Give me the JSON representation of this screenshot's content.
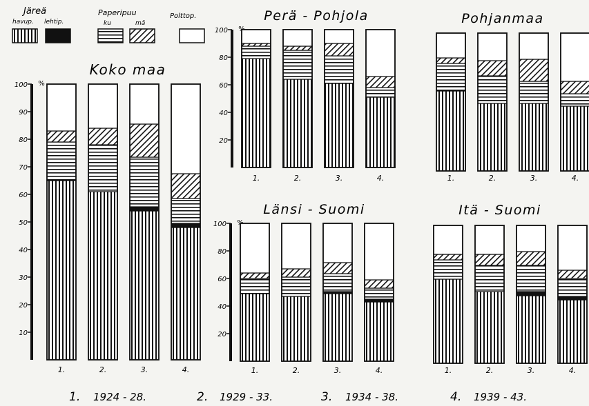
{
  "legend": {
    "title_saw": "Järeä",
    "saw_conifer": "havup.",
    "saw_broadleaf": "lehtip.",
    "title_pulp": "Paperipuu",
    "pulp_spruce": "ku",
    "pulp_pine": "mä",
    "fuel": "Polttop."
  },
  "period_key": [
    {
      "num": "1.",
      "years": "1924 - 28."
    },
    {
      "num": "2.",
      "years": "1929 - 33."
    },
    {
      "num": "3.",
      "years": "1934 - 38."
    },
    {
      "num": "4.",
      "years": "1939 - 43."
    }
  ],
  "chart_data": [
    {
      "type": "bar",
      "stacked": true,
      "title": "Koko maa",
      "ylabel": "%",
      "ylim": [
        0,
        100
      ],
      "yticks": [
        "10",
        "20",
        "30",
        "40",
        "50",
        "60",
        "70",
        "80",
        "90",
        "100"
      ],
      "categories": [
        "1.",
        "2.",
        "3.",
        "4."
      ],
      "series": [
        {
          "pattern": "vertical",
          "values": [
            65,
            61,
            54,
            48
          ]
        },
        {
          "pattern": "solid",
          "values": [
            0,
            0,
            1.5,
            1.5
          ]
        },
        {
          "pattern": "horizontal",
          "values": [
            14,
            17,
            18,
            9
          ]
        },
        {
          "pattern": "diagonal",
          "values": [
            4,
            6,
            12,
            9
          ]
        },
        {
          "pattern": "empty",
          "values": [
            17,
            16,
            14.5,
            32.5
          ]
        }
      ]
    },
    {
      "type": "bar",
      "stacked": true,
      "title": "Perä - Pohjola",
      "ylabel": "%",
      "ylim": [
        0,
        100
      ],
      "yticks": [
        "20",
        "40",
        "60",
        "80",
        "100"
      ],
      "categories": [
        "1.",
        "2.",
        "3.",
        "4."
      ],
      "series": [
        {
          "pattern": "vertical",
          "values": [
            79,
            64,
            61,
            51
          ]
        },
        {
          "pattern": "solid",
          "values": [
            0,
            0,
            0,
            0
          ]
        },
        {
          "pattern": "horizontal",
          "values": [
            9,
            21,
            20,
            7
          ]
        },
        {
          "pattern": "diagonal",
          "values": [
            2,
            3,
            9,
            8
          ]
        },
        {
          "pattern": "empty",
          "values": [
            10,
            12,
            10,
            34
          ]
        }
      ]
    },
    {
      "type": "bar",
      "stacked": true,
      "title": "Pohjanmaa",
      "ylabel": "",
      "ylim": [
        0,
        100
      ],
      "yticks": [],
      "categories": [
        "1.",
        "2.",
        "3.",
        "4."
      ],
      "series": [
        {
          "pattern": "vertical",
          "values": [
            58,
            49,
            49,
            47
          ]
        },
        {
          "pattern": "solid",
          "values": [
            0,
            0,
            0,
            0
          ]
        },
        {
          "pattern": "horizontal",
          "values": [
            20,
            20,
            16,
            9
          ]
        },
        {
          "pattern": "diagonal",
          "values": [
            4,
            11,
            16,
            9
          ]
        },
        {
          "pattern": "empty",
          "values": [
            18,
            20,
            19,
            35
          ]
        }
      ]
    },
    {
      "type": "bar",
      "stacked": true,
      "title": "Länsi - Suomi",
      "ylabel": "%",
      "ylim": [
        0,
        100
      ],
      "yticks": [
        "20",
        "40",
        "60",
        "80",
        "100"
      ],
      "categories": [
        "1.",
        "2.",
        "3.",
        "4."
      ],
      "series": [
        {
          "pattern": "vertical",
          "values": [
            49,
            47,
            49,
            43
          ]
        },
        {
          "pattern": "solid",
          "values": [
            0,
            0,
            1.5,
            2
          ]
        },
        {
          "pattern": "horizontal",
          "values": [
            11,
            14,
            13,
            8
          ]
        },
        {
          "pattern": "diagonal",
          "values": [
            4,
            6,
            8,
            6
          ]
        },
        {
          "pattern": "empty",
          "values": [
            36,
            33,
            28.5,
            41
          ]
        }
      ]
    },
    {
      "type": "bar",
      "stacked": true,
      "title": "Itä - Suomi",
      "ylabel": "",
      "ylim": [
        0,
        100
      ],
      "yticks": [],
      "categories": [
        "1.",
        "2.",
        "3.",
        "4."
      ],
      "series": [
        {
          "pattern": "vertical",
          "values": [
            61,
            52,
            49,
            46
          ]
        },
        {
          "pattern": "solid",
          "values": [
            0,
            0,
            3,
            2.5
          ]
        },
        {
          "pattern": "horizontal",
          "values": [
            14,
            19,
            19,
            13
          ]
        },
        {
          "pattern": "diagonal",
          "values": [
            4,
            8,
            10,
            6
          ]
        },
        {
          "pattern": "empty",
          "values": [
            21,
            21,
            19,
            32.5
          ]
        }
      ]
    }
  ]
}
